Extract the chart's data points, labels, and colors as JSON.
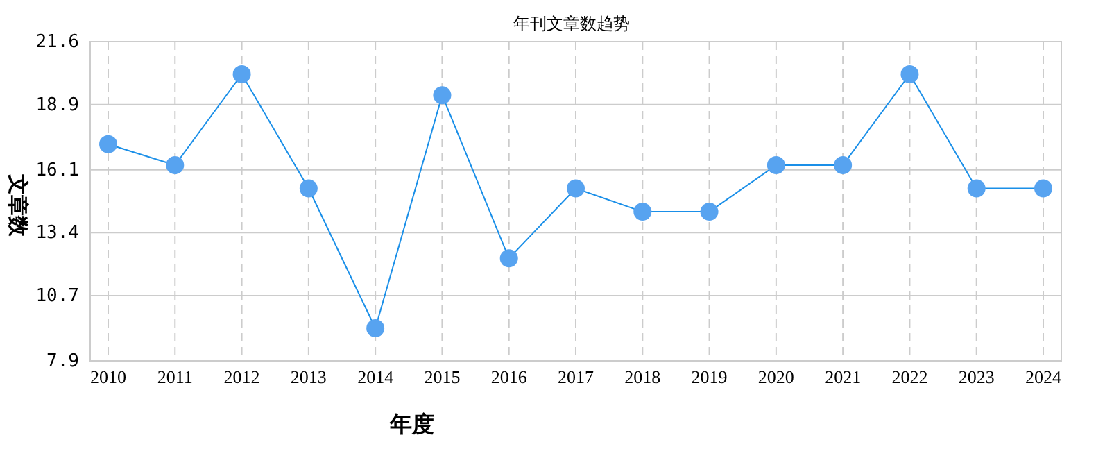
{
  "chart_data": {
    "type": "line",
    "title": "年刊文章数趋势",
    "xlabel": "年度",
    "ylabel": "文章数",
    "categories": [
      "2010",
      "2011",
      "2012",
      "2013",
      "2014",
      "2015",
      "2016",
      "2017",
      "2018",
      "2019",
      "2020",
      "2021",
      "2022",
      "2023",
      "2024"
    ],
    "series": [
      {
        "color": "#1a8fe8",
        "values": [
          17.2,
          16.3,
          20.2,
          15.3,
          9.3,
          19.3,
          12.3,
          15.3,
          14.3,
          14.3,
          16.3,
          16.3,
          20.2,
          15.3,
          15.3
        ]
      }
    ],
    "ylim": [
      7.9,
      21.6
    ],
    "yticks": [
      7.9,
      10.7,
      13.4,
      16.1,
      18.9,
      21.6
    ],
    "grid": true,
    "marker": "circle",
    "line_style": "solid"
  }
}
